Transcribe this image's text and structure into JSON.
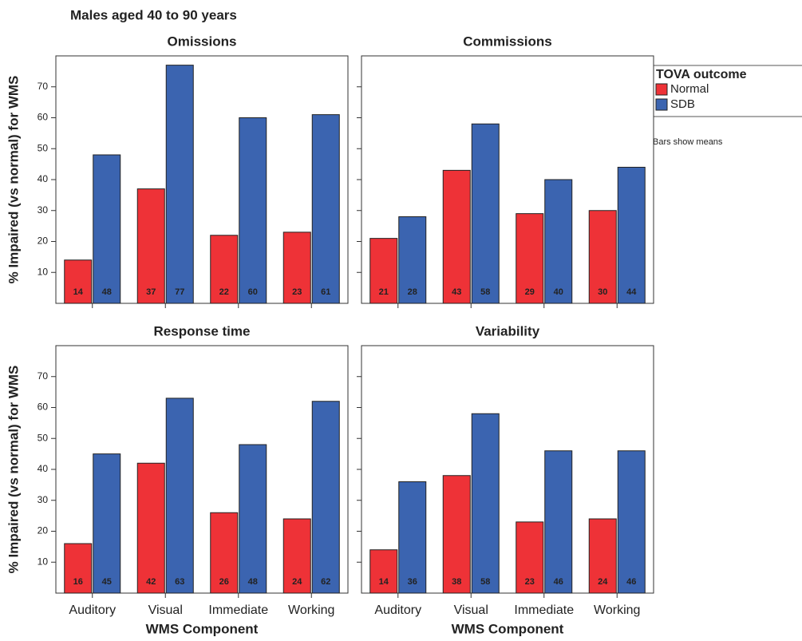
{
  "title": "Males aged 40 to 90 years",
  "legend": {
    "title": "TOVA outcome",
    "names": [
      "Normal",
      "SDB"
    ]
  },
  "note": "Bars show means",
  "chart_data": [
    {
      "type": "bar",
      "title": "Omissions",
      "ylabel": "% Impaired (vs normal) for WMS",
      "ytick_labels": true,
      "series": [
        {
          "color": "#ee3237",
          "values": [
            14,
            37,
            22,
            23
          ]
        },
        {
          "color": "#3b64b0",
          "values": [
            48,
            77,
            60,
            61
          ]
        }
      ],
      "ylim": [
        0,
        80
      ],
      "yticks": [
        10,
        20,
        30,
        40,
        50,
        60,
        70
      ]
    },
    {
      "type": "bar",
      "title": "Commissions",
      "ytick_labels": false,
      "series": [
        {
          "color": "#ee3237",
          "values": [
            21,
            43,
            29,
            30
          ]
        },
        {
          "color": "#3b64b0",
          "values": [
            28,
            58,
            40,
            44
          ]
        }
      ],
      "ylim": [
        0,
        80
      ],
      "yticks": [
        10,
        20,
        30,
        40,
        50,
        60,
        70
      ]
    },
    {
      "type": "bar",
      "title": "Response time",
      "ylabel": "% Impaired (vs normal) for WMS",
      "ytick_labels": true,
      "xlabel": "WMS Component",
      "categories": [
        "Auditory",
        "Visual",
        "Immediate",
        "Working"
      ],
      "series": [
        {
          "color": "#ee3237",
          "values": [
            16,
            42,
            26,
            24
          ]
        },
        {
          "color": "#3b64b0",
          "values": [
            45,
            63,
            48,
            62
          ]
        }
      ],
      "ylim": [
        0,
        80
      ],
      "yticks": [
        10,
        20,
        30,
        40,
        50,
        60,
        70
      ]
    },
    {
      "type": "bar",
      "title": "Variability",
      "ytick_labels": false,
      "xlabel": "WMS Component",
      "categories": [
        "Auditory",
        "Visual",
        "Immediate",
        "Working"
      ],
      "series": [
        {
          "color": "#ee3237",
          "values": [
            14,
            38,
            23,
            24
          ]
        },
        {
          "color": "#3b64b0",
          "values": [
            36,
            58,
            46,
            46
          ]
        }
      ],
      "ylim": [
        0,
        80
      ],
      "yticks": [
        10,
        20,
        30,
        40,
        50,
        60,
        70
      ]
    }
  ]
}
